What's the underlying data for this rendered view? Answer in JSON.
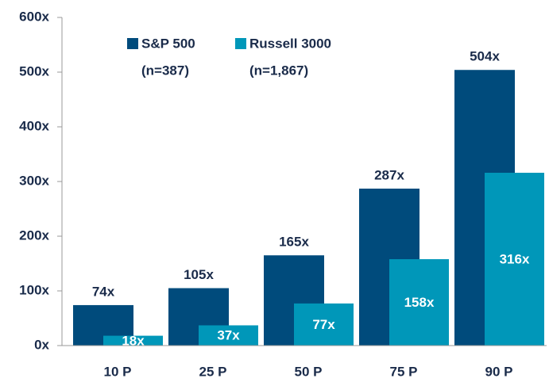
{
  "chart_data": {
    "type": "bar",
    "categories": [
      "10 P",
      "25 P",
      "50 P",
      "75 P",
      "90 P"
    ],
    "series": [
      {
        "name": "S&P 500",
        "sample": "(n=387)",
        "color": "#004b7c",
        "values": [
          74,
          105,
          165,
          287,
          504
        ],
        "value_labels": [
          "74x",
          "105x",
          "165x",
          "287x",
          "504x"
        ]
      },
      {
        "name": "Russell 3000",
        "sample": "(n=1,867)",
        "color": "#0097b9",
        "values": [
          18,
          37,
          77,
          158,
          316
        ],
        "value_labels": [
          "18x",
          "37x",
          "77x",
          "158x",
          "316x"
        ]
      }
    ],
    "ylim": [
      0,
      600
    ],
    "yticks": [
      {
        "value": 0,
        "label": "0x"
      },
      {
        "value": 100,
        "label": "100x"
      },
      {
        "value": 200,
        "label": "200x"
      },
      {
        "value": 300,
        "label": "300x"
      },
      {
        "value": 400,
        "label": "400x"
      },
      {
        "value": 500,
        "label": "500x"
      },
      {
        "value": 600,
        "label": "600x"
      }
    ],
    "grid": false,
    "legend": "top-left"
  }
}
